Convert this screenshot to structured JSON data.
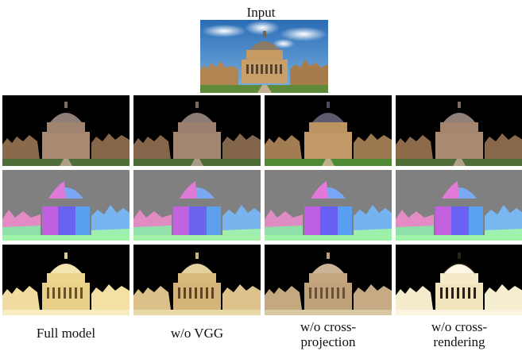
{
  "figure": {
    "input_label": "Input",
    "row_kinds": [
      "reconstruction",
      "normal",
      "albedo"
    ],
    "columns": [
      {
        "caption_line1": "Full model",
        "caption_line2": ""
      },
      {
        "caption_line1": "w/o VGG",
        "caption_line2": ""
      },
      {
        "caption_line1": "w/o cross-",
        "caption_line2": "projection"
      },
      {
        "caption_line1": "w/o cross-",
        "caption_line2": "rendering"
      }
    ],
    "colors": {
      "background": "#ffffff",
      "sky": "#3b7fc4",
      "render_bg": "#000000",
      "normal_bg": "#808080"
    }
  }
}
